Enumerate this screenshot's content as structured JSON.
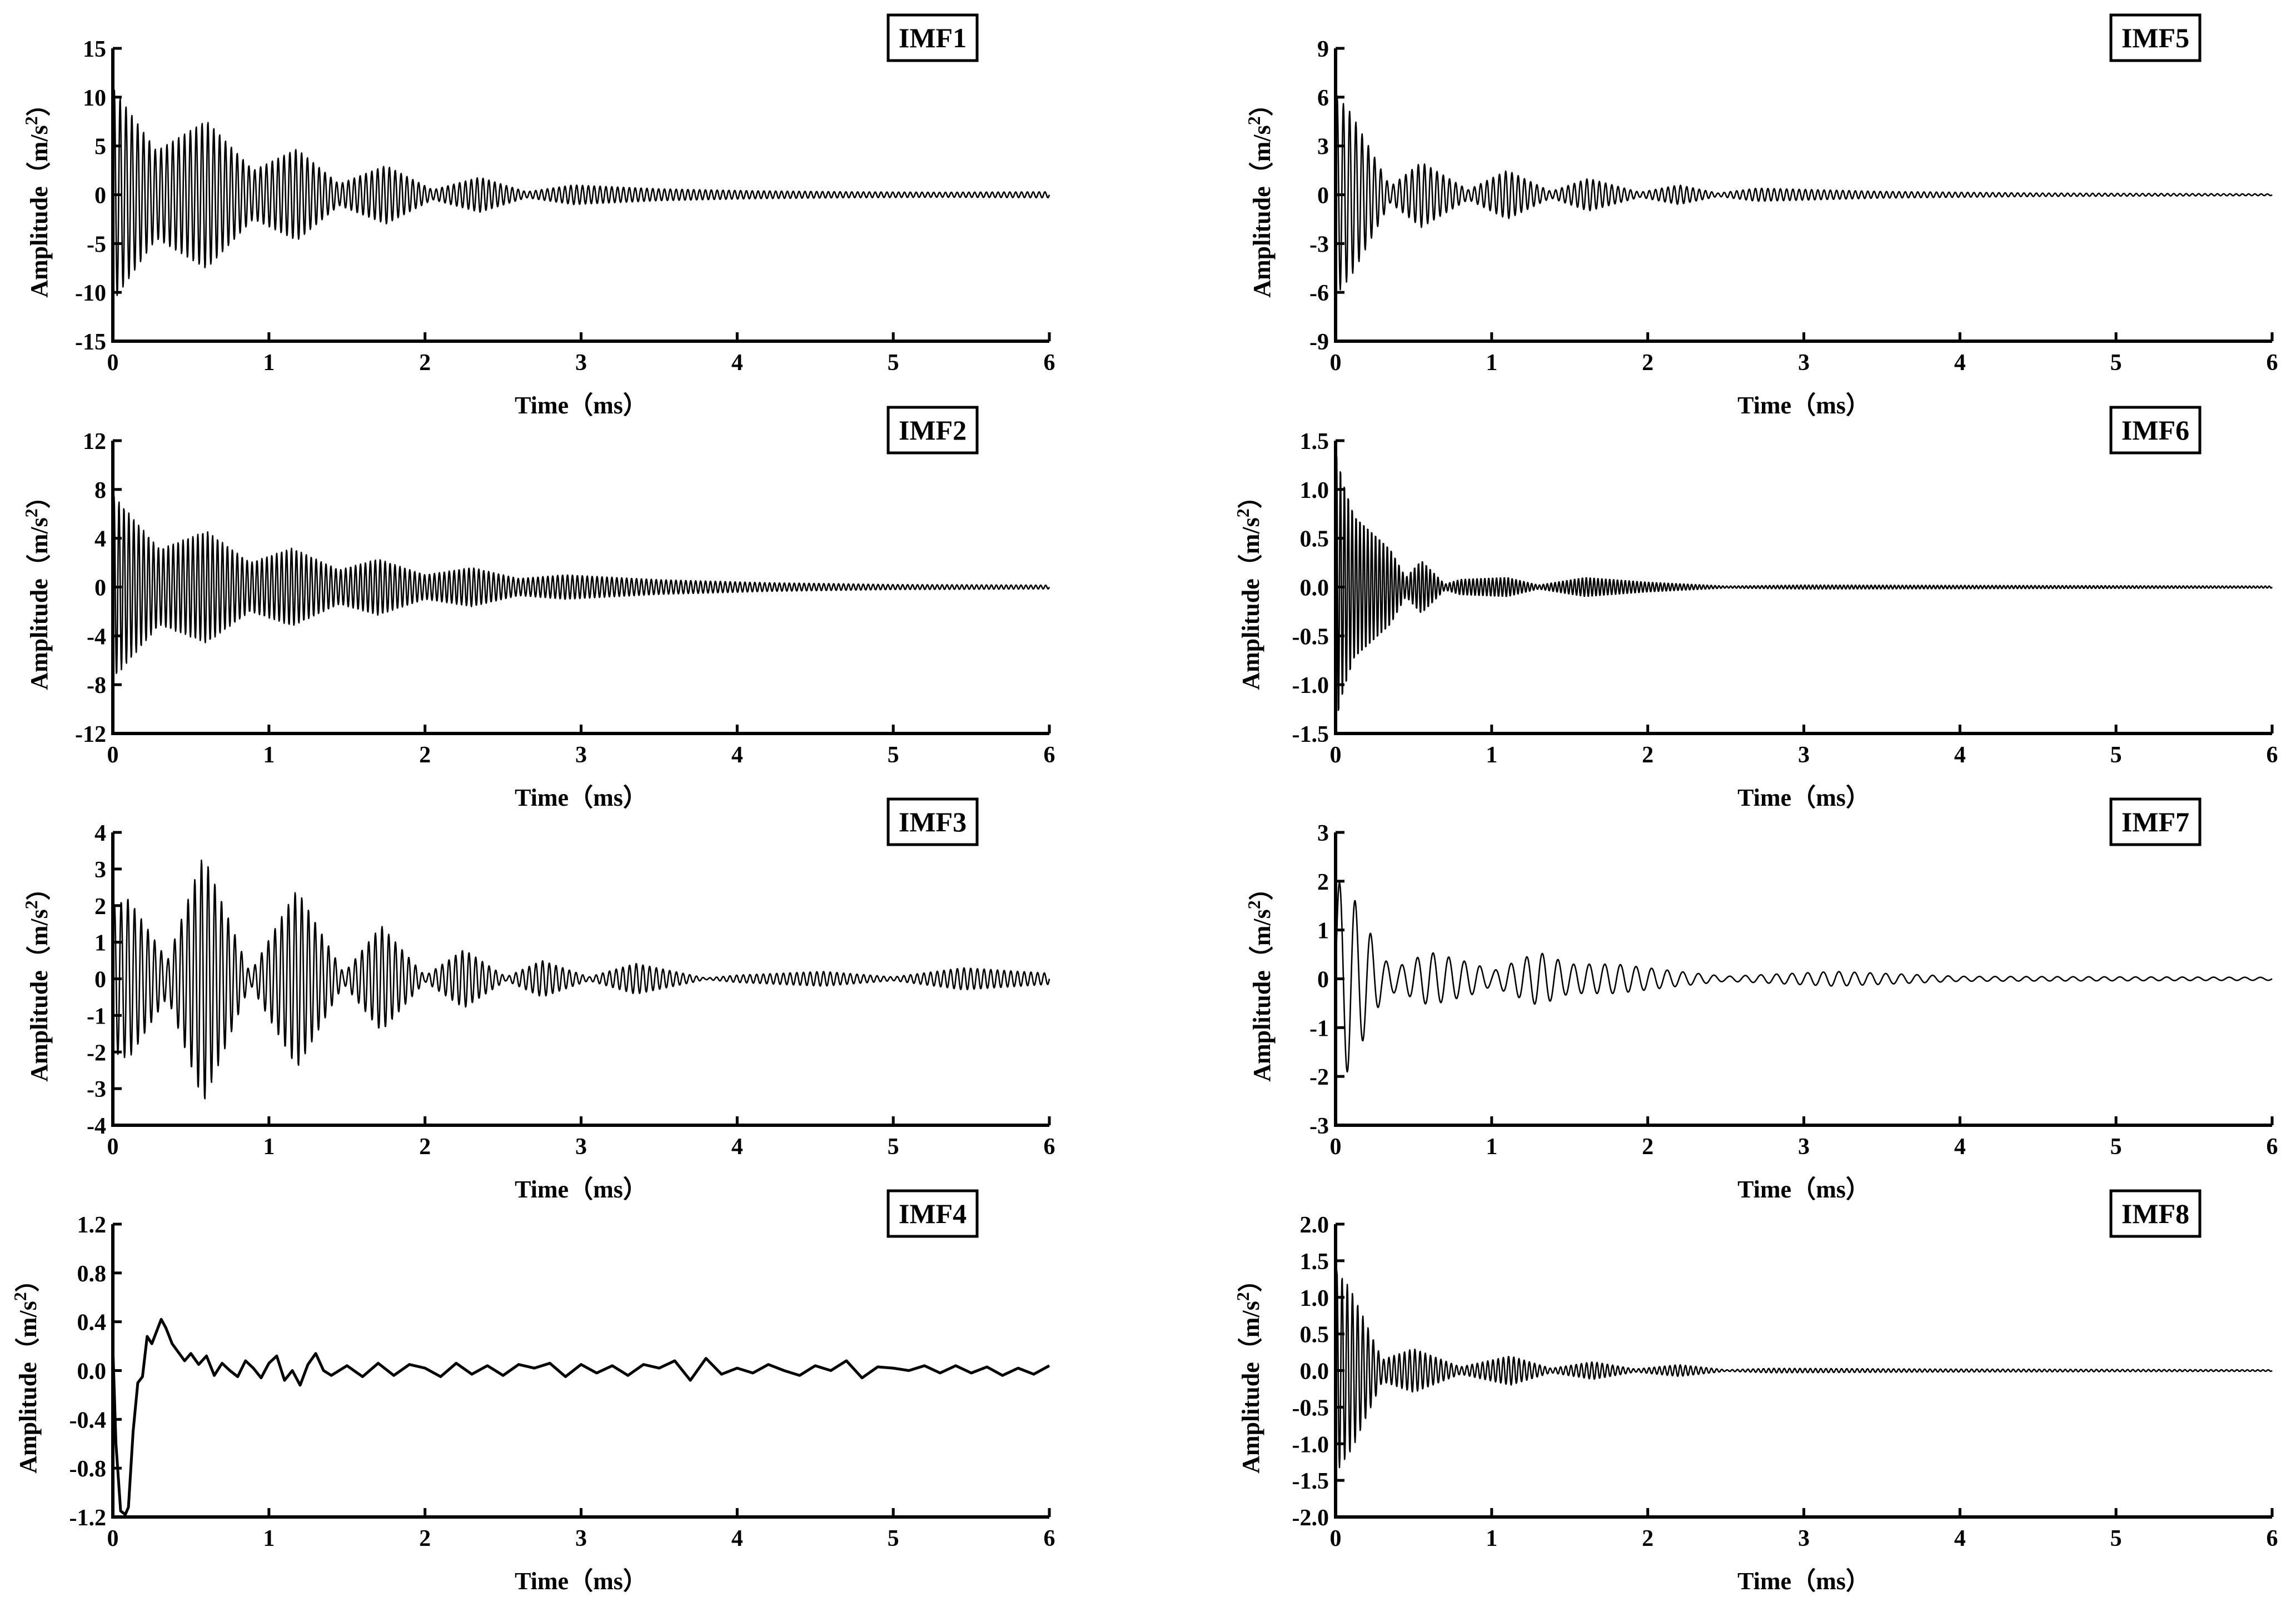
{
  "figure": {
    "background": "#ffffff",
    "ink": "#000000"
  },
  "chart_data": [
    {
      "type": "line",
      "title": "IMF1",
      "xlabel": "Time（ms）",
      "ylabel": "Amplitude（m/s",
      "ylabel_sup": "2",
      "ylabel_end": "）",
      "xlim": [
        0,
        6
      ],
      "ylim": [
        -15,
        15
      ],
      "xticks": [
        "0",
        "1",
        "2",
        "3",
        "4",
        "5",
        "6"
      ],
      "yticks": [
        "-15",
        "-10",
        "-5",
        "0",
        "5",
        "10",
        "15"
      ],
      "ytick_values": [
        -15,
        -10,
        -5,
        0,
        5,
        10,
        15
      ],
      "grid": false,
      "signal": {
        "description": "oscillation",
        "peak_amplitude": 11,
        "envelope_peaks": [
          [
            0.0,
            11.0
          ],
          [
            0.6,
            7.6
          ],
          [
            1.18,
            4.7
          ],
          [
            1.75,
            3.0
          ],
          [
            2.35,
            1.8
          ],
          [
            2.95,
            1.0
          ],
          [
            3.5,
            0.6
          ],
          [
            4.1,
            0.4
          ],
          [
            4.7,
            0.3
          ],
          [
            5.3,
            0.25
          ],
          [
            6.0,
            0.3
          ]
        ],
        "envelope_troughs": [
          [
            0.28,
            4.5
          ],
          [
            0.9,
            2.5
          ],
          [
            1.45,
            1.1
          ],
          [
            2.05,
            0.5
          ],
          [
            2.65,
            0.3
          ]
        ]
      }
    },
    {
      "type": "line",
      "title": "IMF2",
      "xlabel": "Time（ms）",
      "ylabel": "Amplitude（m/s",
      "ylabel_sup": "2",
      "ylabel_end": "）",
      "xlim": [
        0,
        6
      ],
      "ylim": [
        -12,
        12
      ],
      "xticks": [
        "0",
        "1",
        "2",
        "3",
        "4",
        "5",
        "6"
      ],
      "yticks": [
        "-12",
        "-8",
        "-4",
        "0",
        "4",
        "8",
        "12"
      ],
      "ytick_values": [
        -12,
        -8,
        -4,
        0,
        4,
        8,
        12
      ],
      "grid": false,
      "signal": {
        "description": "oscillation",
        "peak_amplitude": 7.6,
        "envelope_peaks": [
          [
            0.0,
            7.6
          ],
          [
            0.6,
            4.6
          ],
          [
            1.15,
            3.2
          ],
          [
            1.7,
            2.3
          ],
          [
            2.3,
            1.6
          ],
          [
            2.9,
            1.0
          ],
          [
            3.5,
            0.6
          ],
          [
            4.2,
            0.35
          ],
          [
            5.0,
            0.2
          ],
          [
            6.0,
            0.15
          ]
        ],
        "envelope_troughs": [
          [
            0.3,
            3.1
          ],
          [
            0.88,
            2.0
          ],
          [
            1.45,
            1.4
          ],
          [
            2.0,
            1.0
          ],
          [
            2.6,
            0.7
          ]
        ]
      }
    },
    {
      "type": "line",
      "title": "IMF3",
      "xlabel": "Time（ms）",
      "ylabel": "Amplitude（m/s",
      "ylabel_sup": "2",
      "ylabel_end": "）",
      "xlim": [
        0,
        6
      ],
      "ylim": [
        -4,
        4
      ],
      "xticks": [
        "0",
        "1",
        "2",
        "3",
        "4",
        "5",
        "6"
      ],
      "yticks": [
        "-4",
        "-3",
        "-2",
        "-1",
        "0",
        "1",
        "2",
        "3",
        "4"
      ],
      "ytick_values": [
        -4,
        -3,
        -2,
        -1,
        0,
        1,
        2,
        3,
        4
      ],
      "grid": false,
      "signal": {
        "description": "oscillation",
        "peak_amplitude": 3.4,
        "envelope_peaks": [
          [
            0.0,
            2.0
          ],
          [
            0.1,
            2.2
          ],
          [
            0.58,
            3.4
          ],
          [
            1.18,
            2.45
          ],
          [
            1.72,
            1.45
          ],
          [
            2.25,
            0.8
          ],
          [
            2.75,
            0.5
          ],
          [
            3.35,
            0.42
          ],
          [
            4.0,
            0.1
          ],
          [
            4.55,
            0.2
          ],
          [
            5.45,
            0.3
          ],
          [
            6.0,
            0.15
          ]
        ],
        "envelope_troughs": [
          [
            0.35,
            0.5
          ],
          [
            0.88,
            0.15
          ],
          [
            1.48,
            0.15
          ],
          [
            2.0,
            0.08
          ],
          [
            2.52,
            0.05
          ],
          [
            3.05,
            0.05
          ],
          [
            3.8,
            0.02
          ],
          [
            5.0,
            0.05
          ]
        ]
      }
    },
    {
      "type": "line",
      "title": "IMF4",
      "xlabel": "Time（ms）",
      "ylabel": "Amplitude（m/s",
      "ylabel_sup": "2",
      "ylabel_end": "）",
      "xlim": [
        0,
        6
      ],
      "ylim": [
        -1.2,
        1.2
      ],
      "xticks": [
        "0",
        "1",
        "2",
        "3",
        "4",
        "5",
        "6"
      ],
      "yticks": [
        "-1.2",
        "-0.8",
        "-0.4",
        "0.0",
        "0.4",
        "0.8",
        "1.2"
      ],
      "ytick_values": [
        -1.2,
        -0.8,
        -0.4,
        0.0,
        0.4,
        0.8,
        1.2
      ],
      "grid": false,
      "signal": {
        "description": "low-frequency trend",
        "x": [
          0,
          0.02,
          0.05,
          0.08,
          0.1,
          0.13,
          0.16,
          0.19,
          0.22,
          0.25,
          0.28,
          0.31,
          0.34,
          0.38,
          0.42,
          0.46,
          0.5,
          0.55,
          0.6,
          0.65,
          0.7,
          0.75,
          0.8,
          0.85,
          0.9,
          0.95,
          1.0,
          1.05,
          1.1,
          1.15,
          1.2,
          1.25,
          1.3,
          1.35,
          1.4,
          1.5,
          1.6,
          1.7,
          1.8,
          1.9,
          2.0,
          2.1,
          2.2,
          2.3,
          2.4,
          2.5,
          2.6,
          2.7,
          2.8,
          2.9,
          3.0,
          3.1,
          3.2,
          3.3,
          3.4,
          3.5,
          3.6,
          3.7,
          3.8,
          3.9,
          4.0,
          4.1,
          4.2,
          4.3,
          4.4,
          4.5,
          4.6,
          4.7,
          4.8,
          4.9,
          5.0,
          5.1,
          5.2,
          5.3,
          5.4,
          5.5,
          5.6,
          5.7,
          5.8,
          5.9,
          6.0
        ],
        "y": [
          0.2,
          -0.6,
          -1.15,
          -1.18,
          -1.12,
          -0.5,
          -0.1,
          -0.05,
          0.28,
          0.22,
          0.32,
          0.42,
          0.35,
          0.22,
          0.15,
          0.08,
          0.14,
          0.05,
          0.12,
          -0.04,
          0.06,
          0.0,
          -0.05,
          0.08,
          0.02,
          -0.06,
          0.06,
          0.12,
          -0.08,
          0.0,
          -0.12,
          0.05,
          0.14,
          0.0,
          -0.04,
          0.04,
          -0.05,
          0.06,
          -0.04,
          0.05,
          0.02,
          -0.05,
          0.06,
          -0.03,
          0.04,
          -0.04,
          0.05,
          0.02,
          0.06,
          -0.05,
          0.05,
          -0.02,
          0.04,
          -0.04,
          0.05,
          0.02,
          0.08,
          -0.08,
          0.1,
          -0.03,
          0.02,
          -0.02,
          0.05,
          0.0,
          -0.04,
          0.04,
          0.0,
          0.08,
          -0.06,
          0.03,
          0.02,
          0.0,
          0.04,
          -0.02,
          0.04,
          -0.02,
          0.03,
          -0.04,
          0.02,
          -0.03,
          0.04
        ]
      }
    },
    {
      "type": "line",
      "title": "IMF5",
      "xlabel": "Time（ms）",
      "ylabel": "Amplitude（m/s",
      "ylabel_sup": "2",
      "ylabel_end": "）",
      "xlim": [
        0,
        6
      ],
      "ylim": [
        -9,
        9
      ],
      "xticks": [
        "0",
        "1",
        "2",
        "3",
        "4",
        "5",
        "6"
      ],
      "yticks": [
        "-9",
        "-6",
        "-3",
        "0",
        "3",
        "6",
        "9"
      ],
      "ytick_values": [
        -9,
        -6,
        -3,
        0,
        3,
        6,
        9
      ],
      "grid": false,
      "signal": {
        "description": "oscillation",
        "peak_amplitude": 6.2,
        "envelope_peaks": [
          [
            0.0,
            6.2
          ],
          [
            0.1,
            5.0
          ],
          [
            0.55,
            2.0
          ],
          [
            1.1,
            1.5
          ],
          [
            1.62,
            1.0
          ],
          [
            2.2,
            0.6
          ],
          [
            2.7,
            0.4
          ],
          [
            3.5,
            0.2
          ],
          [
            4.5,
            0.1
          ],
          [
            6.0,
            0.05
          ]
        ],
        "envelope_troughs": [
          [
            0.35,
            0.5
          ],
          [
            0.85,
            0.3
          ],
          [
            1.38,
            0.2
          ],
          [
            1.95,
            0.15
          ],
          [
            2.45,
            0.1
          ]
        ]
      }
    },
    {
      "type": "line",
      "title": "IMF6",
      "xlabel": "Time（ms）",
      "ylabel": "Amplitude（m/s",
      "ylabel_sup": "2",
      "ylabel_end": "）",
      "xlim": [
        0,
        6
      ],
      "ylim": [
        -1.5,
        1.5
      ],
      "xticks": [
        "0",
        "1",
        "2",
        "3",
        "4",
        "5",
        "6"
      ],
      "yticks": [
        "-1.5",
        "-1.0",
        "-0.5",
        "0.0",
        "0.5",
        "1.0",
        "1.5"
      ],
      "ytick_values": [
        -1.5,
        -1.0,
        -0.5,
        0.0,
        0.5,
        1.0,
        1.5
      ],
      "grid": false,
      "signal": {
        "description": "oscillation",
        "peak_amplitude": 1.45,
        "envelope_peaks": [
          [
            0.0,
            1.45
          ],
          [
            0.05,
            1.1
          ],
          [
            0.12,
            0.75
          ],
          [
            0.22,
            0.6
          ],
          [
            0.35,
            0.4
          ],
          [
            0.55,
            0.28
          ],
          [
            0.8,
            0.08
          ],
          [
            1.1,
            0.1
          ],
          [
            1.6,
            0.1
          ],
          [
            2.0,
            0.05
          ],
          [
            3.0,
            0.02
          ],
          [
            6.0,
            0.01
          ]
        ],
        "envelope_troughs": [
          [
            0.45,
            0.1
          ],
          [
            0.7,
            0.03
          ],
          [
            1.3,
            0.02
          ],
          [
            2.5,
            0.01
          ]
        ]
      }
    },
    {
      "type": "line",
      "title": "IMF7",
      "xlabel": "Time（ms）",
      "ylabel": "Amplitude（m/s",
      "ylabel_sup": "2",
      "ylabel_end": "）",
      "xlim": [
        0,
        6
      ],
      "ylim": [
        -3,
        3
      ],
      "xticks": [
        "0",
        "1",
        "2",
        "3",
        "4",
        "5",
        "6"
      ],
      "yticks": [
        "-3",
        "-2",
        "-1",
        "0",
        "1",
        "2",
        "3"
      ],
      "ytick_values": [
        -3,
        -2,
        -1,
        0,
        1,
        2,
        3
      ],
      "grid": false,
      "signal": {
        "description": "oscillation",
        "peak_amplitude": 2.0,
        "envelope_peaks": [
          [
            0.0,
            2.0
          ],
          [
            0.08,
            1.9
          ],
          [
            0.2,
            1.1
          ],
          [
            0.3,
            0.4
          ],
          [
            0.6,
            0.55
          ],
          [
            0.9,
            0.3
          ],
          [
            1.3,
            0.55
          ],
          [
            1.5,
            0.3
          ],
          [
            1.8,
            0.3
          ],
          [
            2.2,
            0.15
          ],
          [
            3.2,
            0.15
          ],
          [
            4.0,
            0.05
          ],
          [
            6.0,
            0.03
          ]
        ],
        "envelope_troughs": [
          [
            0.4,
            0.25
          ],
          [
            1.0,
            0.15
          ],
          [
            2.5,
            0.05
          ]
        ]
      }
    },
    {
      "type": "line",
      "title": "IMF8",
      "xlabel": "Time（ms）",
      "ylabel": "Amplitude（m/s",
      "ylabel_sup": "2",
      "ylabel_end": "）",
      "xlim": [
        0,
        6
      ],
      "ylim": [
        -2.0,
        2.0
      ],
      "xticks": [
        "0",
        "1",
        "2",
        "3",
        "4",
        "5",
        "6"
      ],
      "yticks": [
        "-2.0",
        "-1.5",
        "-1.0",
        "-0.5",
        "0.0",
        "0.5",
        "1.0",
        "1.5",
        "2.0"
      ],
      "ytick_values": [
        -2.0,
        -1.5,
        -1.0,
        -0.5,
        0.0,
        0.5,
        1.0,
        1.5,
        2.0
      ],
      "grid": false,
      "signal": {
        "description": "oscillation",
        "peak_amplitude": 1.4,
        "envelope_peaks": [
          [
            0.0,
            1.4
          ],
          [
            0.1,
            1.1
          ],
          [
            0.5,
            0.3
          ],
          [
            1.12,
            0.2
          ],
          [
            1.65,
            0.12
          ],
          [
            2.2,
            0.08
          ],
          [
            2.8,
            0.03
          ],
          [
            3.8,
            0.02
          ],
          [
            6.0,
            0.01
          ]
        ],
        "envelope_troughs": [
          [
            0.3,
            0.15
          ],
          [
            0.8,
            0.05
          ],
          [
            1.38,
            0.03
          ],
          [
            1.92,
            0.02
          ],
          [
            2.5,
            0.01
          ]
        ]
      }
    }
  ]
}
